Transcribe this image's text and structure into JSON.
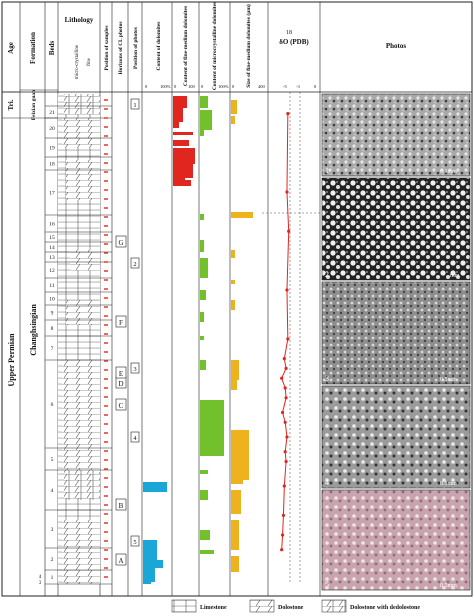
{
  "headers": {
    "age": "Age",
    "formation": "Formation",
    "beds": "Beds",
    "lithology": "Lithology",
    "lith_sub": "micro-crystalline",
    "lith_sub2": "fine",
    "position_samples": "Position of samples",
    "horizons": "Horizons of CL photos",
    "position_photos": "Position of photos",
    "content_dolomites": "Content of dolomites",
    "content_fine": "Content of fine-medium dolomites",
    "content_micro": "Content of microcrystalline dolomites",
    "size_fine": "Size of fine-medium dolomites (μm)",
    "isotope_18": "18",
    "isotope": "δO (PDB)",
    "photos": "Photos"
  },
  "scale_labels": {
    "zero": "0",
    "hundred_pct": "100%",
    "hundred": "100",
    "size_max": "400",
    "iso_neg5": "-5",
    "iso_neg3": "-3",
    "iso_zero": "0"
  },
  "age": {
    "tri": "Tri.",
    "upper_permian": "Upper Permian"
  },
  "formation": {
    "feixianguan": "Feixian guan",
    "changhsingian": "Changhsingian"
  },
  "beds": [
    "1",
    "2",
    "3",
    "4",
    "5",
    "6",
    "7",
    "8",
    "9",
    "10",
    "11",
    "12",
    "13",
    "14",
    "15",
    "16",
    "17",
    "18",
    "19",
    "20",
    "21"
  ],
  "bed_bottom_note": [
    "4",
    "3"
  ],
  "horizons": [
    "A",
    "B",
    "C",
    "D",
    "E",
    "F",
    "G"
  ],
  "photo_markers": [
    "1",
    "2",
    "3",
    "4",
    "5"
  ],
  "photo_panels": [
    {
      "num": "1",
      "scale": "0.1mm"
    },
    {
      "num": "2",
      "scale": "mm"
    },
    {
      "num": "3",
      "scale": "0.5mm"
    },
    {
      "num": "4",
      "scale": "0.5mm"
    },
    {
      "num": "5",
      "scale": "0.5mm"
    }
  ],
  "legend": {
    "limestone": "Limestone",
    "dolostone": "Dolostone",
    "dolostone_dedolostone": "Dolostone with dedolostone"
  },
  "colors": {
    "dolomite_content": "#1aa6d6",
    "fine_medium": "#e0261f",
    "micro": "#72c02c",
    "size": "#eeb21f",
    "isotope": "#e0261f",
    "sample_mark": "#e0261f"
  },
  "chart_data": {
    "type": "stratigraphic-column",
    "isotope_d18O": {
      "xlim": [
        -5,
        0
      ],
      "points": [
        {
          "bed_pos": 0.96,
          "value": -3.2
        },
        {
          "bed_pos": 0.8,
          "value": -3.3
        },
        {
          "bed_pos": 0.72,
          "value": -3.1
        },
        {
          "bed_pos": 0.6,
          "value": -3.3
        },
        {
          "bed_pos": 0.5,
          "value": -3.2
        },
        {
          "bed_pos": 0.46,
          "value": -3.6
        },
        {
          "bed_pos": 0.44,
          "value": -3.4
        },
        {
          "bed_pos": 0.42,
          "value": -3.9
        },
        {
          "bed_pos": 0.4,
          "value": -3.5
        },
        {
          "bed_pos": 0.38,
          "value": -3.4
        },
        {
          "bed_pos": 0.35,
          "value": -3.8
        },
        {
          "bed_pos": 0.33,
          "value": -3.5
        },
        {
          "bed_pos": 0.3,
          "value": -3.3
        },
        {
          "bed_pos": 0.27,
          "value": -3.5
        },
        {
          "bed_pos": 0.25,
          "value": -3.4
        },
        {
          "bed_pos": 0.2,
          "value": -3.6
        },
        {
          "bed_pos": 0.14,
          "value": -3.7
        },
        {
          "bed_pos": 0.1,
          "value": -3.8
        },
        {
          "bed_pos": 0.07,
          "value": -3.9
        }
      ]
    }
  }
}
